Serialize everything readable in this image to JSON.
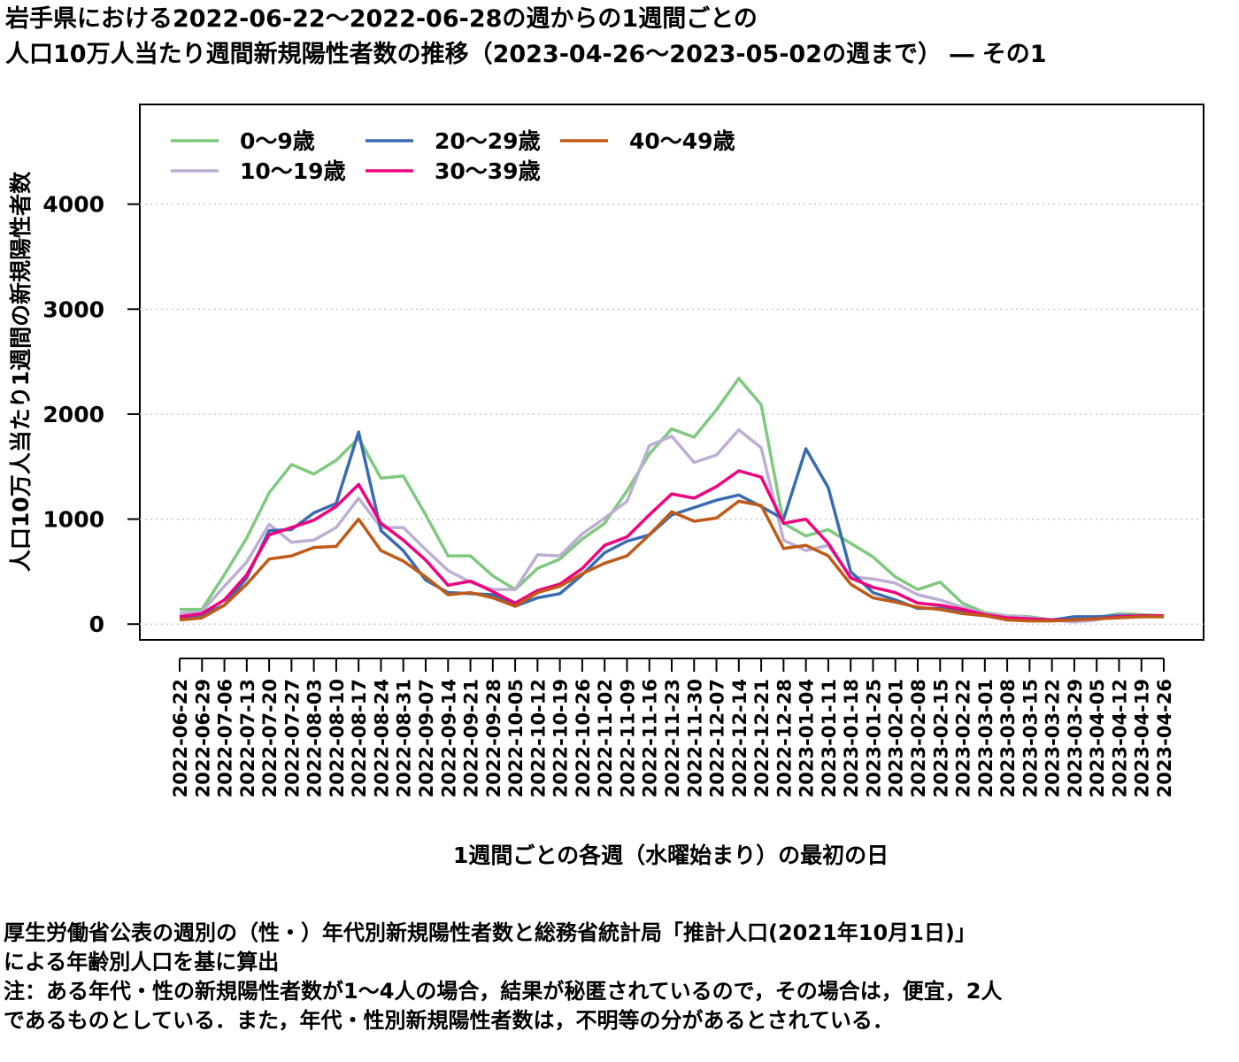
{
  "title": "岩手県における2022-06-22〜2022-06-28の週からの1週間ごとの\n人口10万人当たり週間新規陽性者数の推移（2023-04-26〜2023-05-02の週まで） ― その1",
  "notes": "厚生労働省公表の週別の（性・）年代別新規陽性者数と総務省統計局「推計人口(2021年10月1日)」\nによる年齢別人口を基に算出\n注：ある年代・性の新規陽性者数が1〜4人の場合，結果が秘匿されているので，その場合は，便宜，2人\nであるものとしている．また，年代・性別新規陽性者数は，不明等の分があるとされている．",
  "chart_data": {
    "type": "line",
    "xlabel": "1週間ごとの各週（水曜始まり）の最初の日",
    "ylabel": "人口10万人当たり1週間の新規陽性者数",
    "ylim": [
      -150,
      4950
    ],
    "yticks": [
      0,
      1000,
      2000,
      3000,
      4000
    ],
    "grid": true,
    "legend_position": "top-left",
    "x": [
      "2022-06-22",
      "2022-06-29",
      "2022-07-06",
      "2022-07-13",
      "2022-07-20",
      "2022-07-27",
      "2022-08-03",
      "2022-08-10",
      "2022-08-17",
      "2022-08-24",
      "2022-08-31",
      "2022-09-07",
      "2022-09-14",
      "2022-09-21",
      "2022-09-28",
      "2022-10-05",
      "2022-10-12",
      "2022-10-19",
      "2022-10-26",
      "2022-11-02",
      "2022-11-09",
      "2022-11-16",
      "2022-11-23",
      "2022-11-30",
      "2022-12-07",
      "2022-12-14",
      "2022-12-21",
      "2022-12-28",
      "2023-01-04",
      "2023-01-11",
      "2023-01-18",
      "2023-01-25",
      "2023-02-01",
      "2023-02-08",
      "2023-02-15",
      "2023-02-22",
      "2023-03-01",
      "2023-03-08",
      "2023-03-15",
      "2023-03-22",
      "2023-03-29",
      "2023-04-05",
      "2023-04-12",
      "2023-04-19",
      "2023-04-26"
    ],
    "series": [
      {
        "name": "0〜9歳",
        "color": "#7fc97f",
        "values": [
          140,
          140,
          470,
          820,
          1250,
          1520,
          1430,
          1560,
          1770,
          1390,
          1410,
          1040,
          650,
          650,
          460,
          330,
          530,
          620,
          810,
          960,
          1270,
          1620,
          1860,
          1780,
          2040,
          2340,
          2090,
          960,
          840,
          900,
          770,
          640,
          450,
          330,
          400,
          200,
          110,
          80,
          70,
          40,
          50,
          60,
          100,
          90,
          80
        ]
      },
      {
        "name": "10〜19歳",
        "color": "#beaed4",
        "values": [
          100,
          120,
          360,
          590,
          950,
          780,
          800,
          920,
          1200,
          920,
          920,
          710,
          510,
          400,
          330,
          330,
          660,
          650,
          860,
          1010,
          1170,
          1700,
          1790,
          1540,
          1610,
          1850,
          1680,
          800,
          700,
          750,
          450,
          430,
          390,
          280,
          230,
          160,
          100,
          80,
          60,
          40,
          20,
          40,
          90,
          70,
          70
        ]
      },
      {
        "name": "20〜29歳",
        "color": "#386cb0",
        "values": [
          60,
          90,
          180,
          440,
          890,
          900,
          1060,
          1150,
          1830,
          890,
          700,
          420,
          300,
          290,
          280,
          170,
          250,
          290,
          470,
          680,
          790,
          850,
          1040,
          1110,
          1180,
          1230,
          1120,
          1000,
          1670,
          1300,
          500,
          300,
          230,
          150,
          150,
          120,
          80,
          60,
          50,
          40,
          70,
          70,
          80,
          80,
          80
        ]
      },
      {
        "name": "30〜39歳",
        "color": "#f0027f",
        "values": [
          70,
          100,
          230,
          470,
          850,
          920,
          990,
          1120,
          1330,
          960,
          800,
          610,
          370,
          410,
          310,
          200,
          320,
          380,
          530,
          750,
          830,
          1040,
          1240,
          1200,
          1310,
          1460,
          1400,
          960,
          1000,
          770,
          440,
          350,
          300,
          200,
          180,
          140,
          90,
          60,
          50,
          40,
          40,
          50,
          70,
          80,
          80
        ]
      },
      {
        "name": "40〜49歳",
        "color": "#bf5b17",
        "values": [
          40,
          60,
          180,
          380,
          620,
          650,
          730,
          740,
          1000,
          700,
          600,
          450,
          280,
          300,
          250,
          170,
          300,
          360,
          480,
          580,
          650,
          850,
          1070,
          980,
          1010,
          1170,
          1130,
          720,
          750,
          650,
          380,
          250,
          210,
          160,
          140,
          100,
          80,
          40,
          30,
          30,
          40,
          50,
          60,
          70,
          70
        ]
      }
    ]
  }
}
